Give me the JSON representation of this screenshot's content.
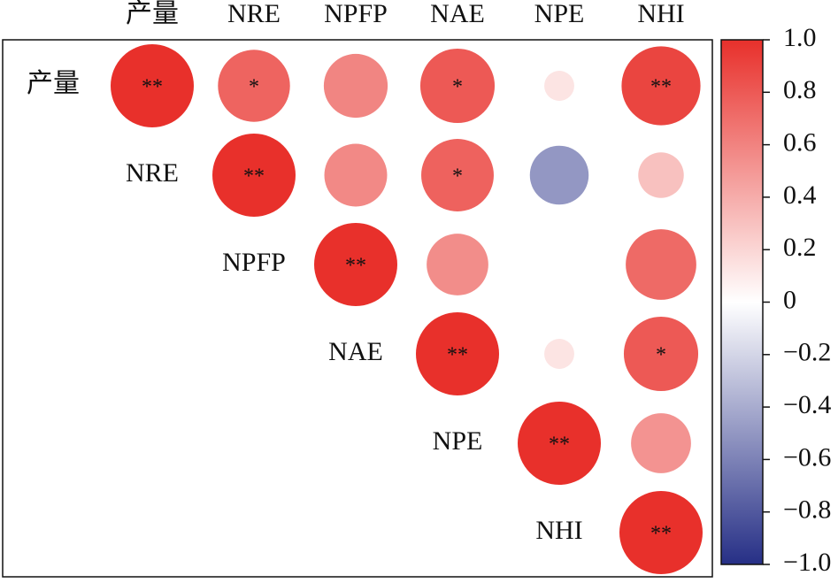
{
  "chart_data": {
    "type": "correlation",
    "variables": [
      "产量",
      "NRE",
      "NPFP",
      "NAE",
      "NPE",
      "NHI"
    ],
    "matrix": [
      [
        1,
        0.75,
        0.59,
        0.8,
        0.13,
        0.9
      ],
      [
        null,
        1,
        0.57,
        0.76,
        -0.5,
        0.3
      ],
      [
        null,
        null,
        1,
        0.55,
        0,
        0.72
      ],
      [
        null,
        null,
        null,
        1,
        0.13,
        0.8
      ],
      [
        null,
        null,
        null,
        null,
        1,
        0.52
      ],
      [
        null,
        null,
        null,
        null,
        null,
        1
      ]
    ],
    "stars": [
      [
        "**",
        "*",
        null,
        "*",
        null,
        "**"
      ],
      [
        null,
        "**",
        null,
        "*",
        null,
        null
      ],
      [
        null,
        null,
        "**",
        null,
        null,
        null
      ],
      [
        null,
        null,
        null,
        "**",
        null,
        "*"
      ],
      [
        null,
        null,
        null,
        null,
        "**",
        null
      ],
      [
        null,
        null,
        null,
        null,
        null,
        "**"
      ]
    ],
    "clim": [
      -1,
      1
    ],
    "cticks": [
      {
        "value": 1,
        "label": "1.0"
      },
      0.8,
      0.6,
      0.4,
      0.2,
      0,
      {
        "value": -0.2,
        "label": "−0.2"
      },
      {
        "value": -0.4,
        "label": "−0.4"
      },
      {
        "value": -0.6,
        "label": "−0.6"
      },
      {
        "value": -0.8,
        "label": "−0.8"
      },
      {
        "value": -1,
        "label": "−1.0"
      }
    ],
    "colormap": [
      "#262f86",
      "#ffffff",
      "#e8302b"
    ]
  }
}
